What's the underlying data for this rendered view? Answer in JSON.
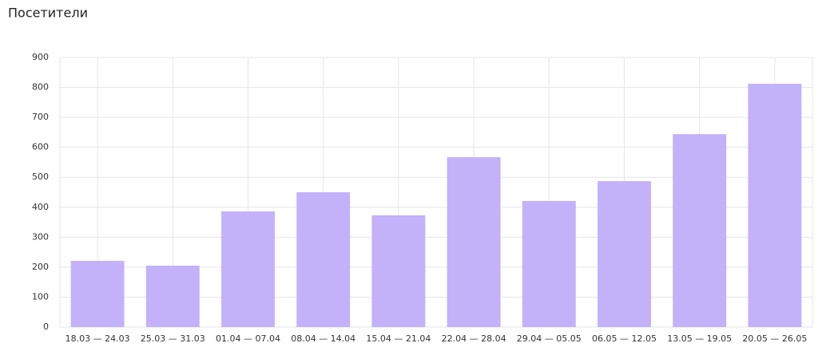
{
  "chart_data": {
    "type": "bar",
    "title": "Посетители",
    "categories": [
      "18.03 — 24.03",
      "25.03 — 31.03",
      "01.04 — 07.04",
      "08.04 — 14.04",
      "15.04 — 21.04",
      "22.04 — 28.04",
      "29.04 — 05.05",
      "06.05 — 12.05",
      "13.05 — 19.05",
      "20.05 — 26.05"
    ],
    "values": [
      221,
      205,
      386,
      450,
      373,
      567,
      421,
      487,
      644,
      812
    ],
    "color": "#c3b1f9",
    "ylim": [
      0,
      900
    ],
    "yticks": [
      0,
      100,
      200,
      300,
      400,
      500,
      600,
      700,
      800,
      900
    ],
    "grid": true
  }
}
